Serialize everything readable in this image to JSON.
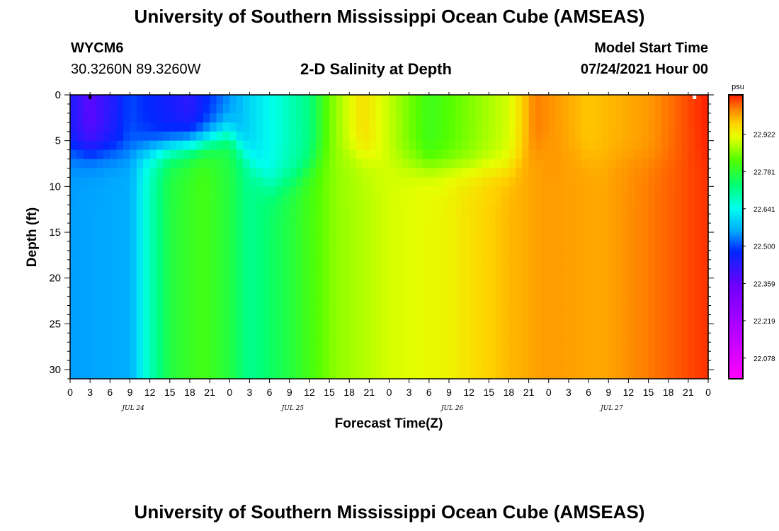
{
  "header": {
    "title": "University of Southern Mississippi Ocean Cube (AMSEAS)",
    "station_id": "WYCM6",
    "station_coords": "30.3260N  89.3260W",
    "plot_title": "2-D Salinity at Depth",
    "model_start_label": "Model Start Time",
    "model_start_value": "07/24/2021 Hour 00"
  },
  "footer": {
    "title": "University of Southern Mississippi Ocean Cube (AMSEAS)"
  },
  "chart_data": {
    "type": "heatmap",
    "title": "2-D Salinity at Depth",
    "xlabel": "Forecast Time(Z)",
    "ylabel": "Depth (ft)",
    "x_range_hours": [
      0,
      96
    ],
    "y_range_ft": [
      0,
      31
    ],
    "x_tick_labels": [
      "0",
      "3",
      "6",
      "9",
      "12",
      "15",
      "18",
      "21",
      "0",
      "3",
      "6",
      "9",
      "12",
      "15",
      "18",
      "21",
      "0",
      "3",
      "6",
      "9",
      "12",
      "15",
      "18",
      "21",
      "0",
      "3",
      "6",
      "9",
      "12",
      "15",
      "18",
      "21",
      "0"
    ],
    "date_labels": [
      {
        "label": "JUL 24",
        "hour": 9.5
      },
      {
        "label": "JUL 25",
        "hour": 33.5
      },
      {
        "label": "JUL 26",
        "hour": 57.5
      },
      {
        "label": "JUL 27",
        "hour": 81.5
      }
    ],
    "y_ticks": [
      0,
      5,
      10,
      15,
      20,
      25,
      30
    ],
    "colorbar": {
      "unit": "psu",
      "min": 22.0,
      "max": 23.07,
      "tick_values": [
        22.922,
        22.781,
        22.641,
        22.5,
        22.359,
        22.219,
        22.078
      ],
      "tick_labels": [
        "22.922",
        "22.781",
        "22.641",
        "22.500",
        "22.359",
        "22.219",
        "22.078"
      ]
    },
    "surface_profile_psu": [
      {
        "hour": 0,
        "psu": 22.45
      },
      {
        "hour": 3,
        "psu": 22.37
      },
      {
        "hour": 9,
        "psu": 22.5
      },
      {
        "hour": 18,
        "psu": 22.43
      },
      {
        "hour": 27,
        "psu": 22.6
      },
      {
        "hour": 36,
        "psu": 22.72
      },
      {
        "hour": 39,
        "psu": 22.84
      },
      {
        "hour": 44,
        "psu": 22.95
      },
      {
        "hour": 54,
        "psu": 22.8
      },
      {
        "hour": 66,
        "psu": 22.9
      },
      {
        "hour": 70,
        "psu": 23.02
      },
      {
        "hour": 78,
        "psu": 22.97
      },
      {
        "hour": 87,
        "psu": 23.0
      },
      {
        "hour": 96,
        "psu": 23.07
      }
    ],
    "deep_profile_psu": [
      {
        "hour": 0,
        "psu": 22.55
      },
      {
        "hour": 9,
        "psu": 22.56
      },
      {
        "hour": 12,
        "psu": 22.68
      },
      {
        "hour": 15,
        "psu": 22.77
      },
      {
        "hour": 20,
        "psu": 22.81
      },
      {
        "hour": 24,
        "psu": 22.77
      },
      {
        "hour": 27,
        "psu": 22.71
      },
      {
        "hour": 33,
        "psu": 22.77
      },
      {
        "hour": 40,
        "psu": 22.86
      },
      {
        "hour": 48,
        "psu": 22.9
      },
      {
        "hour": 56,
        "psu": 22.92
      },
      {
        "hour": 66,
        "psu": 22.98
      },
      {
        "hour": 72,
        "psu": 23.0
      },
      {
        "hour": 80,
        "psu": 22.99
      },
      {
        "hour": 87,
        "psu": 23.02
      },
      {
        "hour": 96,
        "psu": 23.06
      }
    ]
  }
}
